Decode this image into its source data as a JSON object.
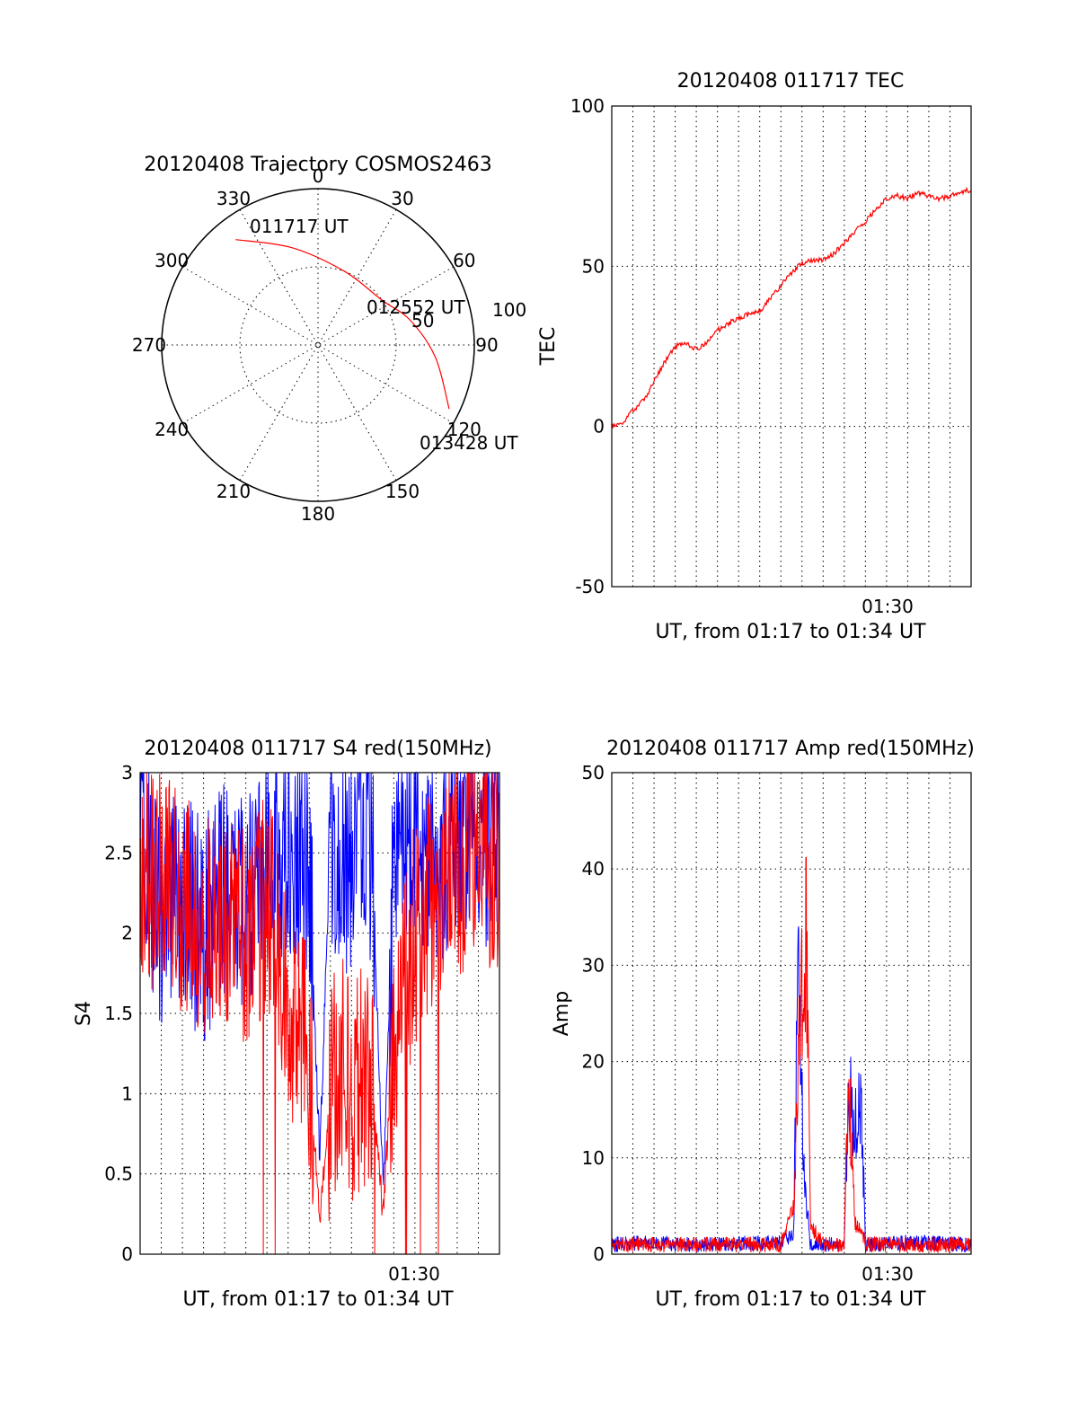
{
  "colors": {
    "red": "#ff0000",
    "blue": "#0000ff"
  },
  "chart_data": [
    {
      "type": "scatter",
      "polar": true,
      "title": "20120408 Trajectory COSMOS2463",
      "angle_labels": [
        "0",
        "30",
        "60",
        "90",
        "120",
        "150",
        "180",
        "210",
        "240",
        "270",
        "300",
        "330"
      ],
      "radial_labels": [
        "50",
        "100"
      ],
      "trajectory": [
        {
          "az": 322,
          "el": 13
        },
        {
          "az": 345,
          "el": 32
        },
        {
          "az": 20,
          "el": 45
        },
        {
          "az": 55,
          "el": 45
        },
        {
          "az": 75,
          "el": 35
        },
        {
          "az": 96,
          "el": 22
        },
        {
          "az": 116,
          "el": 6
        }
      ],
      "annotations": [
        "011717 UT",
        "012552 UT",
        "013428 UT"
      ]
    },
    {
      "type": "line",
      "title": "20120408 011717 TEC",
      "ylabel": "TEC",
      "xlabel": "UT, from 01:17 to 01:34 UT",
      "x_tick_label": "01:30",
      "ylim": [
        -50,
        100
      ],
      "y_ticks": [
        "100",
        "50",
        "0",
        "-50"
      ],
      "series": [
        {
          "color": "red",
          "x": [
            0,
            0.5,
            1,
            1.5,
            2,
            2.5,
            3,
            3.5,
            4,
            4.5,
            5,
            5.5,
            6,
            6.5,
            7,
            7.5,
            8,
            8.5,
            9,
            9.5,
            10,
            10.5,
            11,
            11.5,
            12,
            12.5,
            13,
            13.5,
            14,
            14.5,
            15,
            15.5,
            16,
            16.5,
            17
          ],
          "values": [
            0,
            1,
            5,
            8,
            14,
            20,
            25,
            26,
            24,
            26,
            30,
            32,
            34,
            35,
            36,
            40,
            44,
            48,
            51,
            52,
            52,
            54,
            57,
            61,
            64,
            68,
            71,
            72,
            71,
            73,
            72,
            71,
            72,
            73,
            74
          ]
        }
      ]
    },
    {
      "type": "line",
      "title": "20120408 011717 S4 red(150MHz)",
      "ylabel": "S4",
      "xlabel": "UT, from 01:17 to 01:34 UT",
      "x_tick_label": "01:30",
      "ylim": [
        0,
        3
      ],
      "y_ticks": [
        "3",
        "2.5",
        "2",
        "1.5",
        "1",
        "0.5",
        "0"
      ],
      "series": [
        {
          "color": "blue",
          "x": [
            0,
            1,
            2,
            3,
            4,
            5,
            6,
            7,
            8,
            8.5,
            9,
            9.5,
            10,
            10.5,
            11,
            11.5,
            12,
            13,
            14,
            15,
            16,
            17
          ],
          "values": [
            2.6,
            2.1,
            2.2,
            2.0,
            2.3,
            2.2,
            2.4,
            2.5,
            2.4,
            0.6,
            2.6,
            2.5,
            2.4,
            2.6,
            2.4,
            0.35,
            2.5,
            2.6,
            2.5,
            2.6,
            2.6,
            2.5
          ]
        },
        {
          "color": "red",
          "x": [
            0,
            1,
            2,
            3,
            4,
            5,
            6,
            7,
            8,
            8.5,
            9,
            9.5,
            10,
            10.5,
            11,
            11.5,
            12,
            13,
            14,
            15,
            16,
            17
          ],
          "values": [
            2.4,
            2.3,
            2.2,
            2.0,
            2.1,
            2.0,
            2.2,
            1.6,
            1.2,
            0.2,
            1.0,
            1.2,
            1.0,
            1.1,
            1.0,
            0.25,
            1.4,
            2.0,
            2.3,
            2.4,
            2.5,
            2.4
          ]
        }
      ]
    },
    {
      "type": "line",
      "title": "20120408 011717 Amp red(150MHz)",
      "ylabel": "Amp",
      "xlabel": "UT, from 01:17 to 01:34 UT",
      "x_tick_label": "01:30",
      "ylim": [
        0,
        50
      ],
      "y_ticks": [
        "50",
        "40",
        "30",
        "20",
        "10",
        "0"
      ],
      "series": [
        {
          "color": "blue",
          "x": [
            0,
            2,
            4,
            6,
            8,
            8.6,
            8.8,
            9.1,
            9.4,
            10,
            11,
            11.2,
            11.5,
            11.8,
            12,
            14,
            17
          ],
          "values": [
            1,
            1.2,
            1,
            1.1,
            1.2,
            2,
            37,
            10,
            1,
            1,
            1,
            22,
            16,
            20,
            1,
            1.2,
            1
          ]
        },
        {
          "color": "red",
          "x": [
            0,
            2,
            4,
            6,
            8,
            8.6,
            8.9,
            9.2,
            9.4,
            10,
            11,
            11.2,
            11.5,
            11.8,
            12,
            14,
            17
          ],
          "values": [
            1,
            1,
            1,
            1,
            1,
            5,
            30,
            42.5,
            3,
            1,
            1,
            23,
            4,
            3,
            1,
            1,
            1
          ]
        }
      ]
    }
  ]
}
